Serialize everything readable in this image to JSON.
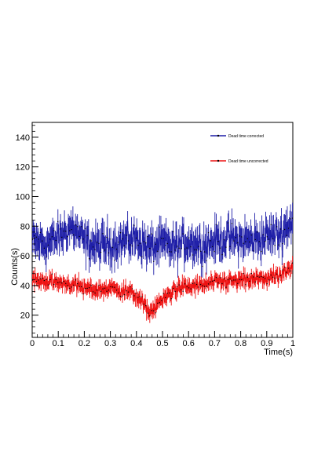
{
  "chart_data": {
    "type": "line",
    "title": "",
    "xlabel": "Time(s)",
    "ylabel": "Counts(s)",
    "xlim": [
      0,
      1
    ],
    "ylim": [
      5,
      150
    ],
    "x_ticks": [
      0,
      0.1,
      0.2,
      0.3,
      0.4,
      0.5,
      0.6,
      0.7,
      0.8,
      0.9,
      1
    ],
    "x_tick_labels": [
      "0",
      "0.1",
      "0.2",
      "0.3",
      "0.4",
      "0.5",
      "0.6",
      "0.7",
      "0.8",
      "0.9",
      "1"
    ],
    "y_ticks": [
      20,
      40,
      60,
      80,
      100,
      120,
      140
    ],
    "y_tick_labels": [
      "20",
      "40",
      "60",
      "80",
      "100",
      "120",
      "140"
    ],
    "grid": false,
    "legend_position": "top-right",
    "error_bars": true,
    "series": [
      {
        "name": "Dead time corrected",
        "color": "#1f1fa8",
        "x": [
          0.0,
          0.05,
          0.1,
          0.15,
          0.2,
          0.25,
          0.3,
          0.35,
          0.4,
          0.45,
          0.5,
          0.55,
          0.6,
          0.65,
          0.7,
          0.75,
          0.8,
          0.85,
          0.9,
          0.95,
          1.0
        ],
        "values": [
          70,
          68,
          72,
          80,
          70,
          66,
          68,
          70,
          72,
          65,
          68,
          66,
          70,
          67,
          70,
          72,
          70,
          71,
          73,
          75,
          84
        ],
        "noise": 12,
        "error": 8
      },
      {
        "name": "Dead time uncorrected",
        "color": "#ee1111",
        "x": [
          0.0,
          0.05,
          0.1,
          0.15,
          0.2,
          0.25,
          0.3,
          0.35,
          0.4,
          0.45,
          0.5,
          0.55,
          0.6,
          0.65,
          0.7,
          0.75,
          0.8,
          0.85,
          0.9,
          0.95,
          1.0
        ],
        "values": [
          44,
          43,
          42,
          41,
          38,
          37,
          38,
          37,
          33,
          22,
          30,
          38,
          39,
          40,
          42,
          43,
          43,
          44,
          45,
          46,
          52
        ],
        "noise": 5,
        "error": 4
      }
    ]
  }
}
